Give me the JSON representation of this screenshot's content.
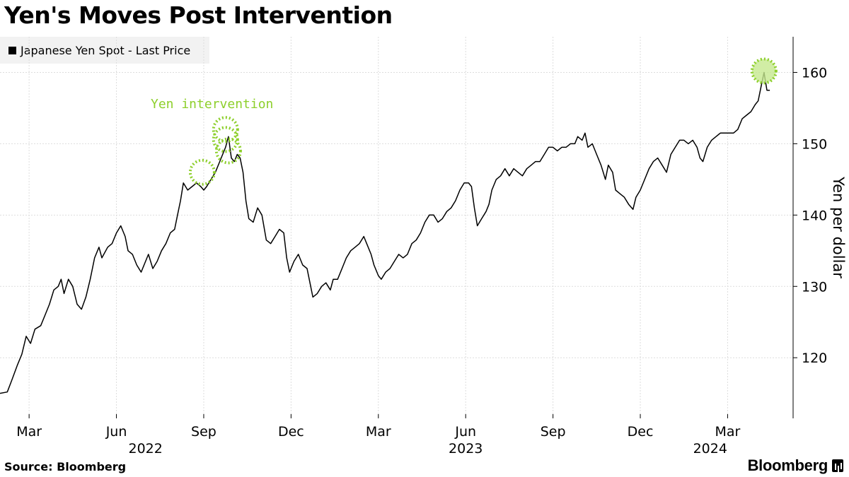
{
  "header": {
    "title": "Yen's Moves Post Intervention"
  },
  "legend": {
    "label": "Japanese Yen Spot - Last Price"
  },
  "footer": {
    "source": "Source: Bloomberg",
    "brand": "Bloomberg"
  },
  "colors": {
    "line": "#000000",
    "grid": "#dddddd",
    "highlight": "#8dcf2b",
    "highlight_fill": "#c5e88f"
  },
  "chart_data": {
    "type": "line",
    "title": "Yen's Moves Post Intervention",
    "ylabel": "Yen per dollar",
    "xlabel": "",
    "ylim": [
      111.5,
      165
    ],
    "xlim": [
      0,
      27.25
    ],
    "y_ticks": [
      120,
      130,
      140,
      150,
      160
    ],
    "x_ticks": [
      {
        "label": "Mar",
        "x": 1
      },
      {
        "label": "Jun",
        "x": 4
      },
      {
        "label": "Sep",
        "x": 7
      },
      {
        "label": "Dec",
        "x": 10
      },
      {
        "label": "Mar",
        "x": 13
      },
      {
        "label": "Jun",
        "x": 16
      },
      {
        "label": "Sep",
        "x": 19
      },
      {
        "label": "Dec",
        "x": 22
      },
      {
        "label": "Mar",
        "x": 25
      }
    ],
    "year_labels": [
      {
        "label": "2022",
        "x": 5
      },
      {
        "label": "2023",
        "x": 16
      },
      {
        "label": "2024",
        "x": 24.4
      }
    ],
    "x_unit_note": "months since 2022-02-01",
    "series": [
      {
        "name": "Japanese Yen Spot - Last Price",
        "points": [
          [
            0.0,
            115.0
          ],
          [
            0.25,
            115.2
          ],
          [
            0.4,
            116.8
          ],
          [
            0.6,
            119.0
          ],
          [
            0.75,
            120.5
          ],
          [
            0.9,
            123.0
          ],
          [
            1.05,
            122.0
          ],
          [
            1.2,
            124.0
          ],
          [
            1.4,
            124.5
          ],
          [
            1.55,
            126.0
          ],
          [
            1.7,
            127.5
          ],
          [
            1.85,
            129.5
          ],
          [
            2.0,
            130.0
          ],
          [
            2.1,
            131.0
          ],
          [
            2.2,
            129.0
          ],
          [
            2.35,
            131.0
          ],
          [
            2.5,
            130.0
          ],
          [
            2.65,
            127.5
          ],
          [
            2.8,
            126.8
          ],
          [
            2.95,
            128.5
          ],
          [
            3.1,
            131.0
          ],
          [
            3.25,
            134.0
          ],
          [
            3.4,
            135.5
          ],
          [
            3.5,
            134.0
          ],
          [
            3.7,
            135.5
          ],
          [
            3.85,
            136.0
          ],
          [
            4.0,
            137.5
          ],
          [
            4.15,
            138.5
          ],
          [
            4.3,
            137.0
          ],
          [
            4.4,
            135.0
          ],
          [
            4.55,
            134.5
          ],
          [
            4.7,
            133.0
          ],
          [
            4.85,
            132.0
          ],
          [
            5.0,
            133.5
          ],
          [
            5.1,
            134.5
          ],
          [
            5.25,
            132.5
          ],
          [
            5.4,
            133.5
          ],
          [
            5.55,
            135.0
          ],
          [
            5.7,
            136.0
          ],
          [
            5.85,
            137.5
          ],
          [
            6.0,
            138.0
          ],
          [
            6.1,
            140.0
          ],
          [
            6.2,
            142.0
          ],
          [
            6.3,
            144.5
          ],
          [
            6.45,
            143.5
          ],
          [
            6.6,
            144.0
          ],
          [
            6.75,
            144.5
          ],
          [
            6.9,
            144.0
          ],
          [
            7.0,
            143.5
          ],
          [
            7.1,
            144.0
          ],
          [
            7.25,
            145.0
          ],
          [
            7.4,
            146.0
          ],
          [
            7.55,
            147.5
          ],
          [
            7.65,
            148.5
          ],
          [
            7.75,
            149.5
          ],
          [
            7.85,
            151.0
          ],
          [
            7.95,
            148.0
          ],
          [
            8.05,
            147.5
          ],
          [
            8.15,
            148.5
          ],
          [
            8.25,
            148.0
          ],
          [
            8.35,
            146.0
          ],
          [
            8.45,
            142.0
          ],
          [
            8.55,
            139.5
          ],
          [
            8.7,
            139.0
          ],
          [
            8.85,
            141.0
          ],
          [
            9.0,
            140.0
          ],
          [
            9.15,
            136.5
          ],
          [
            9.3,
            136.0
          ],
          [
            9.45,
            137.0
          ],
          [
            9.6,
            138.0
          ],
          [
            9.75,
            137.5
          ],
          [
            9.85,
            134.0
          ],
          [
            9.95,
            132.0
          ],
          [
            10.1,
            133.5
          ],
          [
            10.25,
            134.5
          ],
          [
            10.4,
            133.0
          ],
          [
            10.55,
            132.5
          ],
          [
            10.65,
            130.5
          ],
          [
            10.75,
            128.5
          ],
          [
            10.9,
            129.0
          ],
          [
            11.05,
            130.0
          ],
          [
            11.2,
            130.5
          ],
          [
            11.35,
            129.5
          ],
          [
            11.45,
            131.0
          ],
          [
            11.6,
            131.0
          ],
          [
            11.75,
            132.5
          ],
          [
            11.9,
            134.0
          ],
          [
            12.05,
            135.0
          ],
          [
            12.2,
            135.5
          ],
          [
            12.35,
            136.0
          ],
          [
            12.5,
            137.0
          ],
          [
            12.6,
            136.0
          ],
          [
            12.75,
            134.5
          ],
          [
            12.85,
            133.0
          ],
          [
            13.0,
            131.5
          ],
          [
            13.1,
            131.0
          ],
          [
            13.25,
            132.0
          ],
          [
            13.4,
            132.5
          ],
          [
            13.55,
            133.5
          ],
          [
            13.7,
            134.5
          ],
          [
            13.85,
            134.0
          ],
          [
            14.0,
            134.5
          ],
          [
            14.15,
            136.0
          ],
          [
            14.3,
            136.5
          ],
          [
            14.45,
            137.5
          ],
          [
            14.6,
            139.0
          ],
          [
            14.75,
            140.0
          ],
          [
            14.9,
            140.0
          ],
          [
            15.05,
            139.0
          ],
          [
            15.2,
            139.5
          ],
          [
            15.35,
            140.5
          ],
          [
            15.5,
            141.0
          ],
          [
            15.65,
            142.0
          ],
          [
            15.8,
            143.5
          ],
          [
            15.95,
            144.5
          ],
          [
            16.1,
            144.5
          ],
          [
            16.2,
            144.0
          ],
          [
            16.3,
            141.0
          ],
          [
            16.4,
            138.5
          ],
          [
            16.55,
            139.5
          ],
          [
            16.7,
            140.5
          ],
          [
            16.8,
            141.5
          ],
          [
            16.9,
            143.5
          ],
          [
            17.05,
            145.0
          ],
          [
            17.2,
            145.5
          ],
          [
            17.35,
            146.5
          ],
          [
            17.5,
            145.5
          ],
          [
            17.65,
            146.5
          ],
          [
            17.8,
            146.0
          ],
          [
            17.95,
            145.5
          ],
          [
            18.1,
            146.5
          ],
          [
            18.25,
            147.0
          ],
          [
            18.4,
            147.5
          ],
          [
            18.55,
            147.5
          ],
          [
            18.7,
            148.5
          ],
          [
            18.85,
            149.5
          ],
          [
            19.0,
            149.5
          ],
          [
            19.15,
            149.0
          ],
          [
            19.3,
            149.5
          ],
          [
            19.45,
            149.5
          ],
          [
            19.6,
            150.0
          ],
          [
            19.75,
            150.0
          ],
          [
            19.85,
            151.0
          ],
          [
            20.0,
            150.5
          ],
          [
            20.1,
            151.5
          ],
          [
            20.2,
            149.5
          ],
          [
            20.35,
            150.0
          ],
          [
            20.5,
            148.5
          ],
          [
            20.65,
            147.0
          ],
          [
            20.8,
            145.0
          ],
          [
            20.9,
            147.0
          ],
          [
            21.05,
            146.0
          ],
          [
            21.15,
            143.5
          ],
          [
            21.3,
            143.0
          ],
          [
            21.45,
            142.5
          ],
          [
            21.6,
            141.5
          ],
          [
            21.75,
            140.8
          ],
          [
            21.85,
            142.5
          ],
          [
            22.0,
            143.5
          ],
          [
            22.15,
            145.0
          ],
          [
            22.3,
            146.5
          ],
          [
            22.45,
            147.5
          ],
          [
            22.6,
            148.0
          ],
          [
            22.75,
            147.0
          ],
          [
            22.9,
            146.0
          ],
          [
            23.05,
            148.5
          ],
          [
            23.2,
            149.5
          ],
          [
            23.35,
            150.5
          ],
          [
            23.5,
            150.5
          ],
          [
            23.65,
            150.0
          ],
          [
            23.8,
            150.5
          ],
          [
            23.95,
            149.5
          ],
          [
            24.05,
            148.0
          ],
          [
            24.15,
            147.5
          ],
          [
            24.3,
            149.5
          ],
          [
            24.45,
            150.5
          ],
          [
            24.6,
            151.0
          ],
          [
            24.75,
            151.5
          ],
          [
            24.9,
            151.5
          ],
          [
            25.05,
            151.5
          ],
          [
            25.2,
            151.5
          ],
          [
            25.35,
            152.0
          ],
          [
            25.5,
            153.5
          ],
          [
            25.65,
            154.0
          ],
          [
            25.8,
            154.5
          ],
          [
            25.95,
            155.5
          ],
          [
            26.05,
            156.0
          ],
          [
            26.15,
            158.0
          ],
          [
            26.25,
            160.0
          ],
          [
            26.35,
            157.5
          ],
          [
            26.45,
            157.5
          ]
        ]
      }
    ],
    "annotations": [
      {
        "type": "circle",
        "x": 6.95,
        "y": 146.0,
        "label": ""
      },
      {
        "type": "circle",
        "x": 7.75,
        "y": 150.6,
        "label": ""
      },
      {
        "type": "circle",
        "x": 7.75,
        "y": 152.0,
        "label": ""
      },
      {
        "type": "circle",
        "x": 7.85,
        "y": 149.0,
        "label": ""
      },
      {
        "type": "circle",
        "x": 26.25,
        "y": 160.2,
        "label": ""
      },
      {
        "type": "text",
        "text": "Yen intervention"
      }
    ]
  }
}
